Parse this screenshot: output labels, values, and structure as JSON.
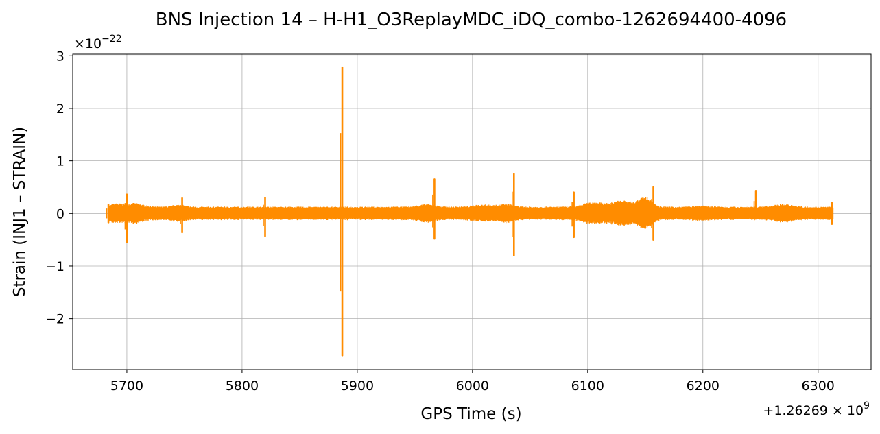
{
  "chart_data": {
    "type": "line",
    "title": "BNS Injection 14 – H-H1_O3ReplayMDC_iDQ_combo-1262694400-4096",
    "xlabel": "GPS Time (s)",
    "ylabel": "Strain (INJ1 – STRAIN)",
    "x_offset_label": "+1.26269 × 10",
    "x_offset_exponent": "9",
    "y_scale_label": "×10",
    "y_scale_exponent": "−22",
    "xlim": [
      5653,
      6346
    ],
    "ylim": [
      -2.97,
      3.03
    ],
    "xticks": [
      5700,
      5800,
      5900,
      6000,
      6100,
      6200,
      6300
    ],
    "xtick_labels": [
      "5700",
      "5800",
      "5900",
      "6000",
      "6100",
      "6200",
      "6300"
    ],
    "yticks": [
      -2,
      -1,
      0,
      1,
      2,
      3
    ],
    "ytick_labels": [
      "−2",
      "−1",
      "0",
      "1",
      "2",
      "3"
    ],
    "grid": true,
    "series_color": "#ff8c00",
    "x_range_data": [
      5684,
      6313
    ],
    "baseline_envelope": 0.13,
    "bursts": [
      {
        "x": 5684,
        "max": 0.17,
        "min": -0.17
      },
      {
        "x": 5700,
        "max": 0.36,
        "min": -0.55
      },
      {
        "x": 5748,
        "max": 0.29,
        "min": -0.36
      },
      {
        "x": 5820,
        "max": 0.3,
        "min": -0.43
      },
      {
        "x": 5887,
        "max": 2.78,
        "min": -2.7
      },
      {
        "x": 5967,
        "max": 0.65,
        "min": -0.48
      },
      {
        "x": 6036,
        "max": 0.75,
        "min": -0.8
      },
      {
        "x": 6088,
        "max": 0.4,
        "min": -0.45
      },
      {
        "x": 6157,
        "max": 0.5,
        "min": -0.5
      },
      {
        "x": 6246,
        "max": 0.43,
        "min": -0.1
      },
      {
        "x": 6312,
        "max": 0.2,
        "min": -0.2
      }
    ]
  }
}
